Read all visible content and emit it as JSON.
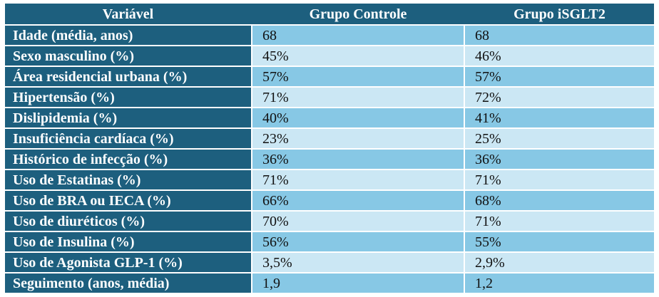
{
  "colors": {
    "header_bg": "#1d5f7e",
    "row_medium_bg": "#87c8e5",
    "row_light_bg": "#cbe7f4",
    "header_text": "#ffffff",
    "value_text": "#111111"
  },
  "table": {
    "columns": [
      "Variável",
      "Grupo Controle",
      "Grupo iSGLT2"
    ],
    "rows": [
      {
        "label": "Idade (média, anos)",
        "controle": "68",
        "isglt2": "68"
      },
      {
        "label": "Sexo masculino (%)",
        "controle": "45%",
        "isglt2": "46%"
      },
      {
        "label": "Área residencial urbana (%)",
        "controle": "57%",
        "isglt2": "57%"
      },
      {
        "label": "Hipertensão (%)",
        "controle": "71%",
        "isglt2": "72%"
      },
      {
        "label": "Dislipidemia (%)",
        "controle": "40%",
        "isglt2": "41%"
      },
      {
        "label": "Insuficiência cardíaca (%)",
        "controle": "23%",
        "isglt2": "25%"
      },
      {
        "label": "Histórico de infecção (%)",
        "controle": "36%",
        "isglt2": "36%"
      },
      {
        "label": "Uso de Estatinas (%)",
        "controle": "71%",
        "isglt2": "71%"
      },
      {
        "label": "Uso de BRA ou IECA (%)",
        "controle": "66%",
        "isglt2": "68%"
      },
      {
        "label": "Uso de diuréticos (%)",
        "controle": "70%",
        "isglt2": "71%"
      },
      {
        "label": "Uso de Insulina (%)",
        "controle": "56%",
        "isglt2": "55%"
      },
      {
        "label": "Uso de Agonista GLP-1 (%)",
        "controle": "3,5%",
        "isglt2": "2,9%"
      },
      {
        "label": "Seguimento (anos, média)",
        "controle": "1,9",
        "isglt2": "1,2"
      }
    ]
  }
}
